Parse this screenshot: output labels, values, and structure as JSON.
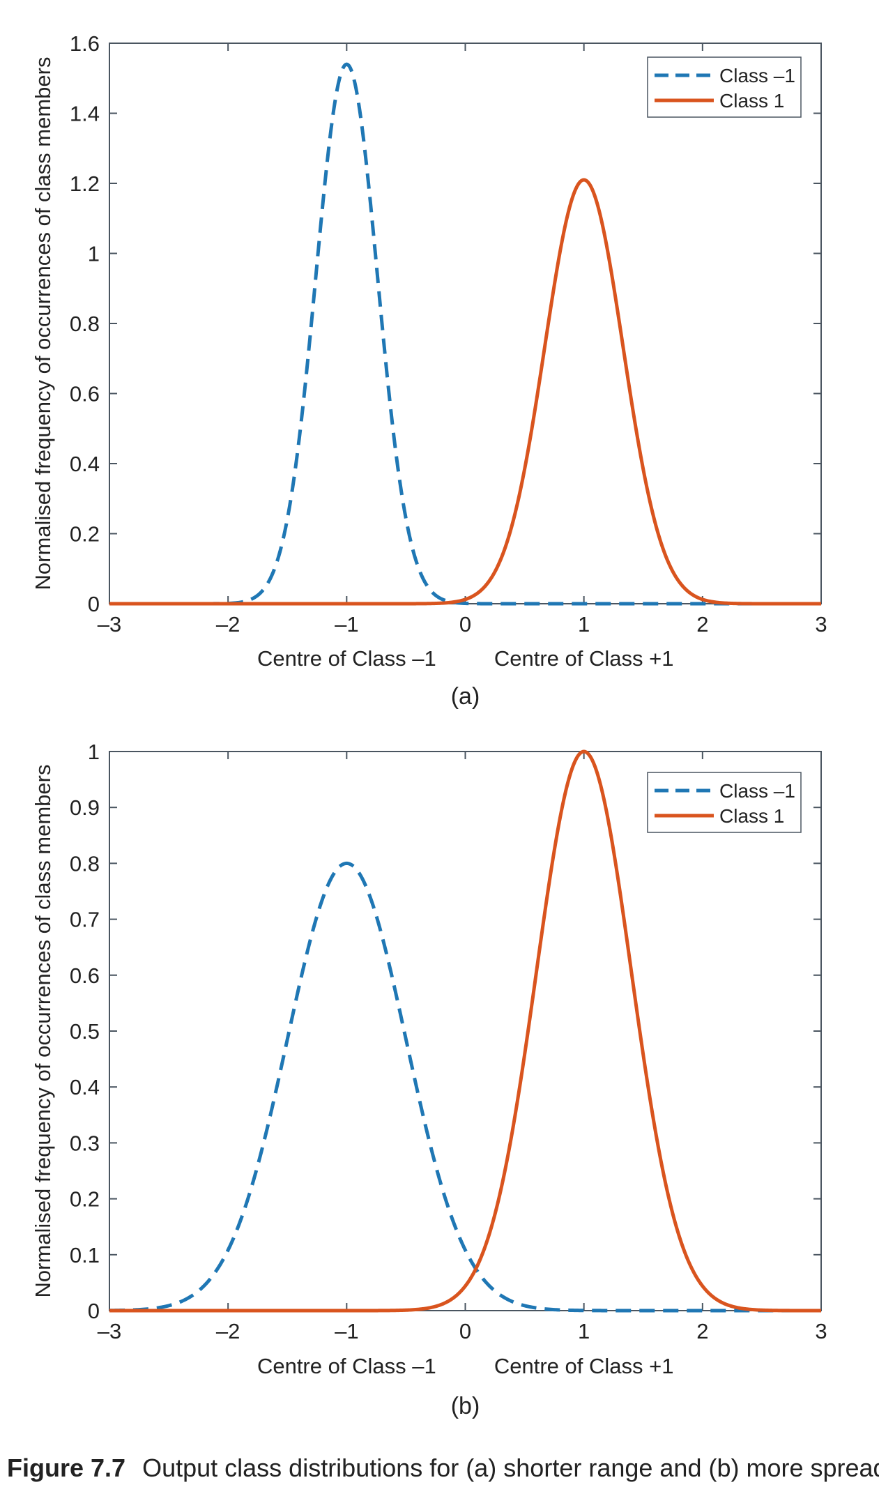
{
  "chart_data": [
    {
      "type": "line",
      "panel_label": "(a)",
      "title": "",
      "xlabel": "",
      "ylabel": "Normalised frequency of occurrences of class members",
      "xlim": [
        -3,
        3
      ],
      "ylim": [
        0,
        1.6
      ],
      "x_ticks": [
        -3,
        -2,
        -1,
        0,
        1,
        2,
        3
      ],
      "x_tick_labels": [
        "–3",
        "–2",
        "–1",
        "0",
        "1",
        "2",
        "3"
      ],
      "y_ticks": [
        0,
        0.2,
        0.4,
        0.6,
        0.8,
        1,
        1.2,
        1.4,
        1.6
      ],
      "y_tick_labels": [
        "0",
        "0.2",
        "0.4",
        "0.6",
        "0.8",
        "1",
        "1.2",
        "1.4",
        "1.6"
      ],
      "annotations": [
        "Centre of Class –1",
        "Centre of Class +1"
      ],
      "annotation_x": [
        -1,
        1
      ],
      "legend": {
        "position": "top-right",
        "entries": [
          "Class –1",
          "Class 1"
        ]
      },
      "series": [
        {
          "name": "Class –1",
          "style": "dashed",
          "color": "#1f77b4",
          "distribution": "gaussian",
          "mean": -1,
          "sigma": 0.26,
          "peak": 1.54
        },
        {
          "name": "Class 1",
          "style": "solid",
          "color": "#d9541e",
          "distribution": "gaussian",
          "mean": 1,
          "sigma": 0.33,
          "peak": 1.21
        }
      ]
    },
    {
      "type": "line",
      "panel_label": "(b)",
      "title": "",
      "xlabel": "",
      "ylabel": "Normalised frequency of occurrences of class members",
      "xlim": [
        -3,
        3
      ],
      "ylim": [
        0,
        1
      ],
      "x_ticks": [
        -3,
        -2,
        -1,
        0,
        1,
        2,
        3
      ],
      "x_tick_labels": [
        "–3",
        "–2",
        "–1",
        "0",
        "1",
        "2",
        "3"
      ],
      "y_ticks": [
        0,
        0.1,
        0.2,
        0.3,
        0.4,
        0.5,
        0.6,
        0.7,
        0.8,
        0.9,
        1
      ],
      "y_tick_labels": [
        "0",
        "0.1",
        "0.2",
        "0.3",
        "0.4",
        "0.5",
        "0.6",
        "0.7",
        "0.8",
        "0.9",
        "1"
      ],
      "annotations": [
        "Centre of Class –1",
        "Centre of Class +1"
      ],
      "annotation_x": [
        -1,
        1
      ],
      "legend": {
        "position": "top-right",
        "entries": [
          "Class –1",
          "Class 1"
        ]
      },
      "series": [
        {
          "name": "Class –1",
          "style": "dashed",
          "color": "#1f77b4",
          "distribution": "gaussian",
          "mean": -1,
          "sigma": 0.5,
          "peak": 0.8
        },
        {
          "name": "Class 1",
          "style": "solid",
          "color": "#d9541e",
          "distribution": "gaussian",
          "mean": 1,
          "sigma": 0.4,
          "peak": 1.0
        }
      ]
    }
  ],
  "caption": {
    "label": "Figure 7.7",
    "text": "Output class distributions for (a) shorter range and (b) more spread valid t"
  }
}
